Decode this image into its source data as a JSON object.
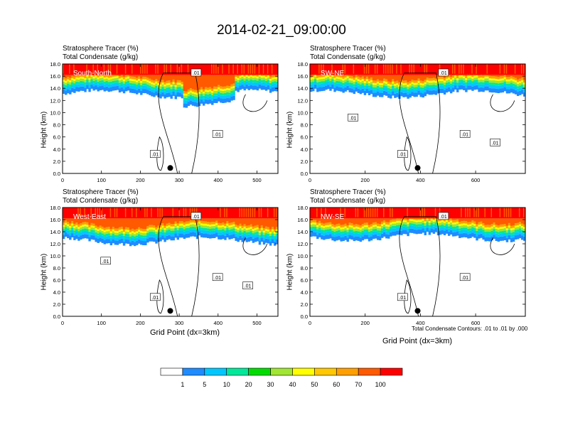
{
  "title": "2014-02-21_09:00:00",
  "panel_title_line1": "Stratosphere Tracer   (%)",
  "panel_title_line2": "Total Condensate   (g/kg)",
  "ylabel": "Height (km)",
  "xlabel": "Grid Point (dx=3km)",
  "contour_note": "Total Condensate Contours: .01 to .01 by .000",
  "colors": {
    "levels": [
      "#ffffff",
      "#1e8cff",
      "#00c8ff",
      "#00e89a",
      "#00dc00",
      "#a0e632",
      "#ffff00",
      "#ffc800",
      "#ffa000",
      "#ff5a00",
      "#ff0000"
    ]
  },
  "chart_data": [
    {
      "type": "heatmap",
      "panel": "South-North",
      "title": "Stratosphere Tracer   (%)",
      "subtitle": "Total Condensate   (g/kg)",
      "label": "South-North",
      "xlim": [
        0,
        554
      ],
      "ylim": [
        0,
        18
      ],
      "xticks": [
        0,
        100,
        200,
        300,
        400,
        500
      ],
      "yticks": [
        0.0,
        2.0,
        4.0,
        6.0,
        8.0,
        10.0,
        12.0,
        14.0,
        16.0,
        18.0
      ],
      "ylabel": "Height (km)",
      "contour_labels": [
        ".01",
        ".01",
        ".01"
      ]
    },
    {
      "type": "heatmap",
      "panel": "SW-NE",
      "title": "Stratosphere Tracer   (%)",
      "subtitle": "Total Condensate   (g/kg)",
      "label": "SW-NE",
      "xlim": [
        0,
        780
      ],
      "ylim": [
        0,
        18
      ],
      "xticks": [
        0,
        200,
        400,
        600
      ],
      "yticks": [
        0.0,
        2.0,
        4.0,
        6.0,
        8.0,
        10.0,
        12.0,
        14.0,
        16.0,
        18.0
      ],
      "ylabel": "Height (km)",
      "contour_labels": [
        ".01",
        ".01",
        ".01",
        ".01",
        ".01"
      ]
    },
    {
      "type": "heatmap",
      "panel": "West-East",
      "title": "Stratosphere Tracer   (%)",
      "subtitle": "Total Condensate   (g/kg)",
      "label": "West-East",
      "xlim": [
        0,
        554
      ],
      "ylim": [
        0,
        18
      ],
      "xticks": [
        0,
        100,
        200,
        300,
        400,
        500
      ],
      "yticks": [
        0.0,
        2.0,
        4.0,
        6.0,
        8.0,
        10.0,
        12.0,
        14.0,
        16.0,
        18.0
      ],
      "ylabel": "Height (km)",
      "xlabel": "Grid Point (dx=3km)",
      "contour_labels": [
        ".01",
        ".01",
        ".01",
        ".01",
        ".01"
      ]
    },
    {
      "type": "heatmap",
      "panel": "NW-SE",
      "title": "Stratosphere Tracer   (%)",
      "subtitle": "Total Condensate   (g/kg)",
      "label": "NW-SE",
      "xlim": [
        0,
        780
      ],
      "ylim": [
        0,
        18
      ],
      "xticks": [
        0,
        200,
        400,
        600
      ],
      "yticks": [
        0.0,
        2.0,
        4.0,
        6.0,
        8.0,
        10.0,
        12.0,
        14.0,
        16.0,
        18.0
      ],
      "ylabel": "Height (km)",
      "xlabel": "Grid Point (dx=3km)",
      "contour_labels": [
        ".01",
        ".01",
        ".01"
      ]
    },
    {
      "type": "colorbar",
      "labels": [
        "1",
        "5",
        "10",
        "20",
        "30",
        "40",
        "50",
        "60",
        "70",
        "100"
      ]
    }
  ]
}
